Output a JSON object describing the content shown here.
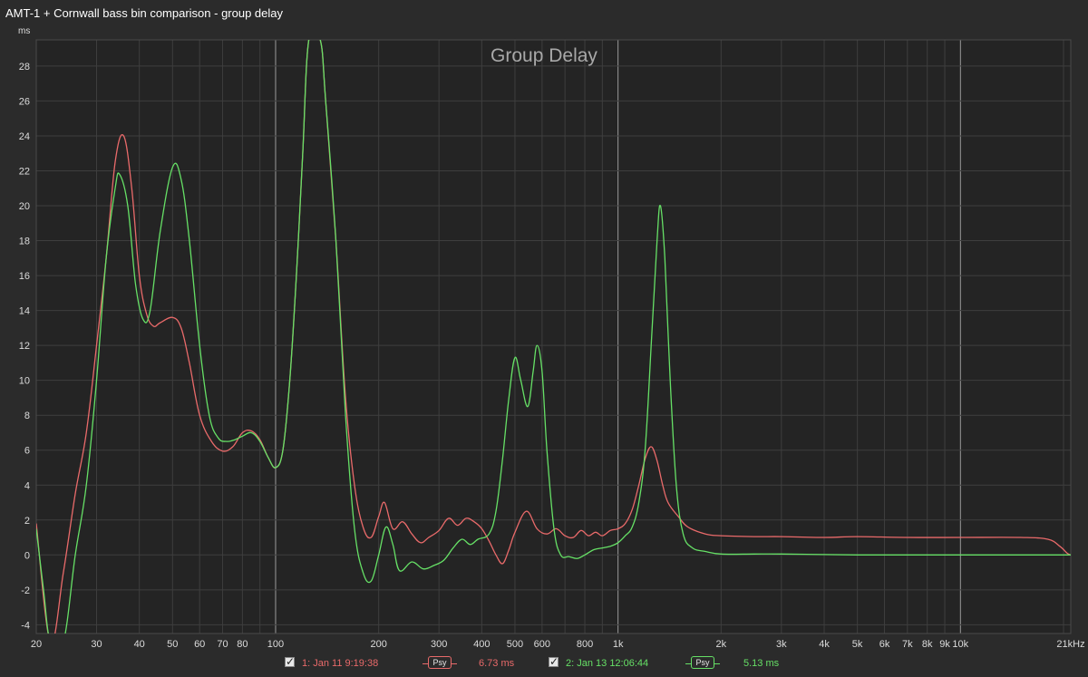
{
  "window": {
    "title": "AMT-1 + Cornwall bass bin comparison - group delay"
  },
  "colors": {
    "background": "#2b2b2b",
    "plot_bg": "#242424",
    "grid_major": "#5e5e5e",
    "grid_minor": "#3e3e3e",
    "decade_line": "#9a9a9a",
    "series1": "#e96a6a",
    "series2": "#66e066"
  },
  "chart_data": {
    "type": "line",
    "title": "Group Delay",
    "ylabel": "ms",
    "xunit": "kHz",
    "xscale": "log",
    "xlim": [
      20,
      21000
    ],
    "ylim": [
      -4.5,
      29.5
    ],
    "grid": true,
    "x_ticks": [
      {
        "value": 20,
        "label": "20"
      },
      {
        "value": 30,
        "label": "30"
      },
      {
        "value": 40,
        "label": "40"
      },
      {
        "value": 50,
        "label": "50"
      },
      {
        "value": 60,
        "label": "60"
      },
      {
        "value": 70,
        "label": "70"
      },
      {
        "value": 80,
        "label": "80"
      },
      {
        "value": 100,
        "label": "100"
      },
      {
        "value": 200,
        "label": "200"
      },
      {
        "value": 300,
        "label": "300"
      },
      {
        "value": 400,
        "label": "400"
      },
      {
        "value": 500,
        "label": "500"
      },
      {
        "value": 600,
        "label": "600"
      },
      {
        "value": 800,
        "label": "800"
      },
      {
        "value": 1000,
        "label": "1k"
      },
      {
        "value": 2000,
        "label": "2k"
      },
      {
        "value": 3000,
        "label": "3k"
      },
      {
        "value": 4000,
        "label": "4k"
      },
      {
        "value": 5000,
        "label": "5k"
      },
      {
        "value": 6000,
        "label": "6k"
      },
      {
        "value": 7000,
        "label": "7k"
      },
      {
        "value": 8000,
        "label": "8k"
      },
      {
        "value": 9000,
        "label": "9k"
      },
      {
        "value": 10000,
        "label": "10k"
      },
      {
        "value": 21000,
        "label": "21kHz"
      }
    ],
    "y_ticks": [
      -4,
      -2,
      0,
      2,
      4,
      6,
      8,
      10,
      12,
      14,
      16,
      18,
      20,
      22,
      24,
      26,
      28
    ],
    "series": [
      {
        "name": "1: Jan 11 9:19:38",
        "smoothing": "Psy",
        "value_label": "6.73 ms",
        "color": "#e96a6a",
        "points": [
          [
            20,
            1.8
          ],
          [
            22,
            -5.0
          ],
          [
            24,
            -1.0
          ],
          [
            26,
            3.5
          ],
          [
            28,
            7.0
          ],
          [
            30,
            12.0
          ],
          [
            32,
            17.0
          ],
          [
            34,
            22.5
          ],
          [
            36,
            24.0
          ],
          [
            38,
            21.0
          ],
          [
            40,
            16.0
          ],
          [
            42,
            13.8
          ],
          [
            44,
            13.1
          ],
          [
            46,
            13.3
          ],
          [
            50,
            13.6
          ],
          [
            53,
            13.0
          ],
          [
            56,
            11.0
          ],
          [
            60,
            8.0
          ],
          [
            65,
            6.5
          ],
          [
            70,
            5.95
          ],
          [
            75,
            6.2
          ],
          [
            80,
            7.0
          ],
          [
            85,
            7.1
          ],
          [
            90,
            6.6
          ],
          [
            95,
            5.6
          ],
          [
            100,
            5.0
          ],
          [
            105,
            6.0
          ],
          [
            110,
            10.0
          ],
          [
            115,
            16.0
          ],
          [
            120,
            23.0
          ],
          [
            125,
            29.5
          ],
          [
            135,
            29.5
          ],
          [
            140,
            26.0
          ],
          [
            150,
            18.0
          ],
          [
            160,
            9.0
          ],
          [
            170,
            4.0
          ],
          [
            180,
            1.6
          ],
          [
            190,
            1.0
          ],
          [
            200,
            2.2
          ],
          [
            208,
            3.0
          ],
          [
            220,
            1.5
          ],
          [
            235,
            1.9
          ],
          [
            250,
            1.2
          ],
          [
            265,
            0.7
          ],
          [
            280,
            1.0
          ],
          [
            300,
            1.4
          ],
          [
            320,
            2.1
          ],
          [
            340,
            1.7
          ],
          [
            360,
            2.1
          ],
          [
            380,
            1.9
          ],
          [
            400,
            1.5
          ],
          [
            420,
            0.8
          ],
          [
            440,
            0.0
          ],
          [
            460,
            -0.5
          ],
          [
            480,
            0.3
          ],
          [
            500,
            1.3
          ],
          [
            540,
            2.5
          ],
          [
            580,
            1.5
          ],
          [
            620,
            1.2
          ],
          [
            660,
            1.5
          ],
          [
            700,
            1.1
          ],
          [
            740,
            1.0
          ],
          [
            780,
            1.4
          ],
          [
            820,
            1.1
          ],
          [
            860,
            1.3
          ],
          [
            900,
            1.1
          ],
          [
            950,
            1.4
          ],
          [
            1000,
            1.5
          ],
          [
            1050,
            1.8
          ],
          [
            1100,
            2.6
          ],
          [
            1150,
            4.0
          ],
          [
            1200,
            5.5
          ],
          [
            1250,
            6.2
          ],
          [
            1300,
            5.4
          ],
          [
            1350,
            4.0
          ],
          [
            1400,
            3.0
          ],
          [
            1500,
            2.2
          ],
          [
            1600,
            1.6
          ],
          [
            1800,
            1.2
          ],
          [
            2000,
            1.1
          ],
          [
            2500,
            1.05
          ],
          [
            3000,
            1.05
          ],
          [
            4000,
            1.0
          ],
          [
            5000,
            1.05
          ],
          [
            7000,
            1.0
          ],
          [
            10000,
            1.0
          ],
          [
            15000,
            1.0
          ],
          [
            18000,
            0.9
          ],
          [
            19500,
            0.5
          ],
          [
            20500,
            0.1
          ],
          [
            21000,
            0.0
          ]
        ]
      },
      {
        "name": "2: Jan 13 12:06:44",
        "smoothing": "Psy",
        "value_label": "5.13 ms",
        "color": "#66e066",
        "points": [
          [
            20,
            1.5
          ],
          [
            21,
            -2.0
          ],
          [
            22,
            -5.0
          ],
          [
            24,
            -5.0
          ],
          [
            26,
            0.0
          ],
          [
            28,
            4.0
          ],
          [
            30,
            10.0
          ],
          [
            32,
            17.0
          ],
          [
            34,
            21.0
          ],
          [
            35,
            21.8
          ],
          [
            37,
            20.0
          ],
          [
            39,
            15.5
          ],
          [
            41,
            13.5
          ],
          [
            43,
            14.0
          ],
          [
            46,
            18.5
          ],
          [
            50,
            22.2
          ],
          [
            53,
            21.5
          ],
          [
            56,
            18.0
          ],
          [
            60,
            12.0
          ],
          [
            64,
            8.0
          ],
          [
            68,
            6.7
          ],
          [
            72,
            6.5
          ],
          [
            76,
            6.6
          ],
          [
            80,
            6.8
          ],
          [
            85,
            7.0
          ],
          [
            90,
            6.5
          ],
          [
            95,
            5.6
          ],
          [
            100,
            5.0
          ],
          [
            105,
            6.0
          ],
          [
            110,
            10.0
          ],
          [
            115,
            16.0
          ],
          [
            120,
            23.0
          ],
          [
            125,
            29.5
          ],
          [
            135,
            29.5
          ],
          [
            140,
            26.0
          ],
          [
            150,
            18.0
          ],
          [
            160,
            8.0
          ],
          [
            170,
            1.5
          ],
          [
            180,
            -1.0
          ],
          [
            190,
            -1.5
          ],
          [
            200,
            0.0
          ],
          [
            210,
            1.6
          ],
          [
            220,
            0.6
          ],
          [
            230,
            -0.9
          ],
          [
            250,
            -0.4
          ],
          [
            270,
            -0.8
          ],
          [
            290,
            -0.6
          ],
          [
            310,
            -0.3
          ],
          [
            330,
            0.4
          ],
          [
            350,
            0.9
          ],
          [
            370,
            0.6
          ],
          [
            390,
            0.9
          ],
          [
            420,
            1.2
          ],
          [
            440,
            2.5
          ],
          [
            460,
            5.5
          ],
          [
            480,
            9.0
          ],
          [
            500,
            11.3
          ],
          [
            520,
            10.0
          ],
          [
            545,
            8.5
          ],
          [
            565,
            10.5
          ],
          [
            580,
            12.0
          ],
          [
            600,
            10.5
          ],
          [
            620,
            6.0
          ],
          [
            650,
            1.5
          ],
          [
            680,
            0.0
          ],
          [
            720,
            -0.1
          ],
          [
            760,
            -0.2
          ],
          [
            800,
            0.0
          ],
          [
            850,
            0.3
          ],
          [
            900,
            0.4
          ],
          [
            950,
            0.5
          ],
          [
            1000,
            0.7
          ],
          [
            1050,
            1.1
          ],
          [
            1100,
            1.6
          ],
          [
            1150,
            3.0
          ],
          [
            1200,
            6.0
          ],
          [
            1250,
            12.0
          ],
          [
            1300,
            18.0
          ],
          [
            1330,
            20.0
          ],
          [
            1370,
            17.0
          ],
          [
            1420,
            10.0
          ],
          [
            1480,
            4.0
          ],
          [
            1550,
            1.2
          ],
          [
            1650,
            0.4
          ],
          [
            1800,
            0.2
          ],
          [
            2000,
            0.05
          ],
          [
            2500,
            0.05
          ],
          [
            3000,
            0.05
          ],
          [
            5000,
            0.0
          ],
          [
            10000,
            0.0
          ],
          [
            21000,
            0.0
          ]
        ]
      }
    ]
  }
}
